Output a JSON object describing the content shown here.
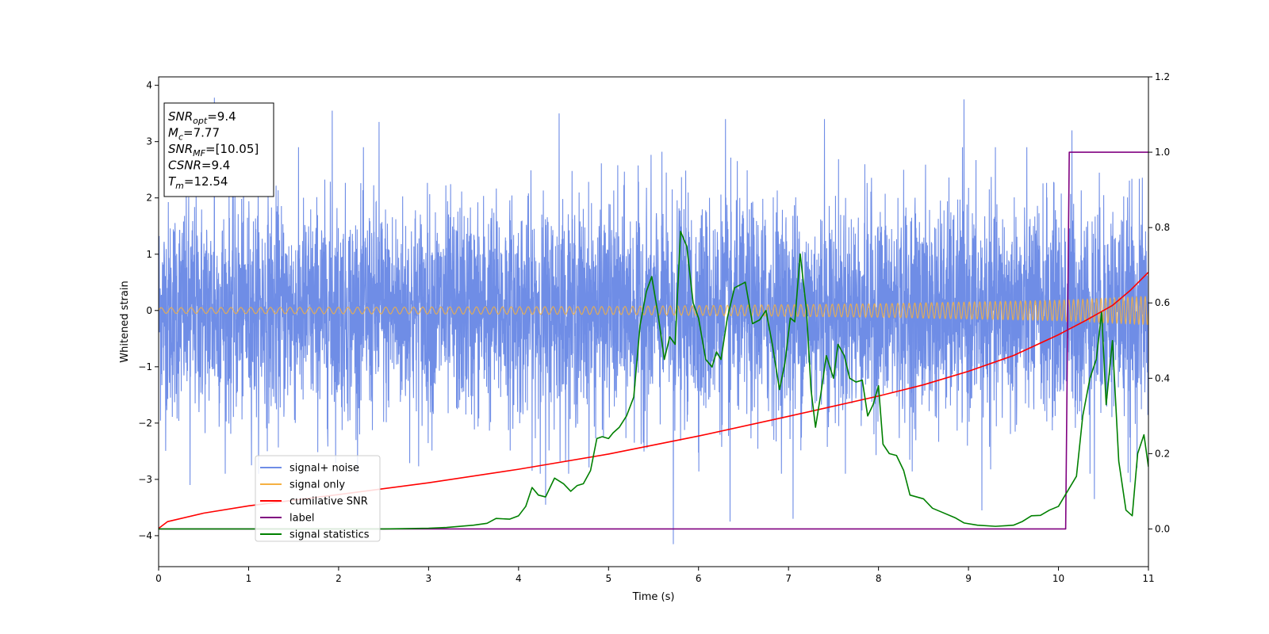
{
  "chart_data": {
    "type": "line",
    "title": "",
    "xlabel": "Time (s)",
    "ylabel": "Whitened strain",
    "xlim": [
      0,
      11
    ],
    "ylim_left": [
      -4.55,
      4.15
    ],
    "ylim_right": [
      -0.1,
      1.2
    ],
    "x_ticks": [
      0,
      1,
      2,
      3,
      4,
      5,
      6,
      7,
      8,
      9,
      10,
      11
    ],
    "y_ticks_left": [
      -4,
      -3,
      -2,
      -1,
      0,
      1,
      2,
      3,
      4
    ],
    "y_ticks_right": [
      0.0,
      0.2,
      0.4,
      0.6,
      0.8,
      1.0,
      1.2
    ],
    "grid": false,
    "legend_position": "lower-left",
    "info_box": {
      "lines": [
        {
          "main": "SNR",
          "sub": "opt",
          "value": "=9.4"
        },
        {
          "main": "M",
          "sub": "c",
          "value": "=7.77"
        },
        {
          "main": "SNR",
          "sub": "MF",
          "value": "=[10.05]"
        },
        {
          "main": "CSNR",
          "sub": "",
          "value": "=9.4"
        },
        {
          "main": "T",
          "sub": "m",
          "value": "=12.54"
        }
      ]
    },
    "series": [
      {
        "name": "signal+ noise",
        "axis": "left",
        "color": "#6f8de6",
        "note_amplitude": "dense noise, roughly ±2 with spikes up to ~3.8 and down to ~-4.1",
        "spikes": [
          [
            0.62,
            3.78
          ],
          [
            1.93,
            3.55
          ],
          [
            2.45,
            3.35
          ],
          [
            4.45,
            3.5
          ],
          [
            6.3,
            3.4
          ],
          [
            7.4,
            3.4
          ],
          [
            8.95,
            3.75
          ],
          [
            10.15,
            3.2
          ],
          [
            5.72,
            -4.15
          ],
          [
            6.35,
            -3.75
          ],
          [
            7.05,
            -3.7
          ],
          [
            0.35,
            -3.1
          ],
          [
            4.3,
            -3.45
          ],
          [
            9.15,
            -3.55
          ],
          [
            10.4,
            -3.35
          ],
          [
            10.8,
            -3.05
          ]
        ]
      },
      {
        "name": "signal only",
        "axis": "left",
        "color": "#f5b041",
        "note": "chirp oscillation with amplitude growing from ~0.05 to ~0.25",
        "amplitude_points": [
          [
            0,
            0.05
          ],
          [
            5,
            0.07
          ],
          [
            8,
            0.12
          ],
          [
            10,
            0.18
          ],
          [
            11,
            0.25
          ]
        ]
      },
      {
        "name": "cumilative SNR",
        "axis": "left",
        "color": "#ff0000",
        "points": [
          [
            0,
            -3.87
          ],
          [
            0.1,
            -3.75
          ],
          [
            0.5,
            -3.6
          ],
          [
            1,
            -3.47
          ],
          [
            2,
            -3.27
          ],
          [
            3,
            -3.06
          ],
          [
            4,
            -2.82
          ],
          [
            5,
            -2.55
          ],
          [
            6,
            -2.23
          ],
          [
            7,
            -1.88
          ],
          [
            7.5,
            -1.7
          ],
          [
            8,
            -1.52
          ],
          [
            8.5,
            -1.32
          ],
          [
            9,
            -1.08
          ],
          [
            9.5,
            -0.8
          ],
          [
            10,
            -0.43
          ],
          [
            10.3,
            -0.18
          ],
          [
            10.6,
            0.09
          ],
          [
            10.8,
            0.36
          ],
          [
            11,
            0.68
          ]
        ]
      },
      {
        "name": "label",
        "axis": "right",
        "color": "#800080",
        "points": [
          [
            0,
            0.0
          ],
          [
            10.08,
            0.0
          ],
          [
            10.12,
            1.0
          ],
          [
            11,
            1.0
          ]
        ]
      },
      {
        "name": "signal statistics",
        "axis": "right",
        "color": "#008000",
        "points": [
          [
            0,
            0.0
          ],
          [
            1,
            0.0
          ],
          [
            2,
            0.0
          ],
          [
            2.5,
            0.0
          ],
          [
            3,
            0.002
          ],
          [
            3.2,
            0.004
          ],
          [
            3.5,
            0.01
          ],
          [
            3.65,
            0.015
          ],
          [
            3.75,
            0.028
          ],
          [
            3.9,
            0.026
          ],
          [
            4.0,
            0.035
          ],
          [
            4.08,
            0.06
          ],
          [
            4.15,
            0.11
          ],
          [
            4.22,
            0.09
          ],
          [
            4.3,
            0.085
          ],
          [
            4.4,
            0.135
          ],
          [
            4.5,
            0.12
          ],
          [
            4.58,
            0.1
          ],
          [
            4.65,
            0.115
          ],
          [
            4.72,
            0.12
          ],
          [
            4.8,
            0.155
          ],
          [
            4.87,
            0.24
          ],
          [
            4.93,
            0.245
          ],
          [
            5.0,
            0.24
          ],
          [
            5.05,
            0.255
          ],
          [
            5.12,
            0.27
          ],
          [
            5.2,
            0.3
          ],
          [
            5.28,
            0.35
          ],
          [
            5.35,
            0.54
          ],
          [
            5.42,
            0.63
          ],
          [
            5.48,
            0.67
          ],
          [
            5.55,
            0.57
          ],
          [
            5.62,
            0.45
          ],
          [
            5.68,
            0.51
          ],
          [
            5.74,
            0.49
          ],
          [
            5.8,
            0.79
          ],
          [
            5.87,
            0.75
          ],
          [
            5.94,
            0.6
          ],
          [
            6.0,
            0.56
          ],
          [
            6.08,
            0.45
          ],
          [
            6.15,
            0.43
          ],
          [
            6.2,
            0.47
          ],
          [
            6.25,
            0.45
          ],
          [
            6.32,
            0.56
          ],
          [
            6.4,
            0.64
          ],
          [
            6.52,
            0.655
          ],
          [
            6.6,
            0.545
          ],
          [
            6.68,
            0.555
          ],
          [
            6.75,
            0.58
          ],
          [
            6.82,
            0.49
          ],
          [
            6.9,
            0.37
          ],
          [
            6.96,
            0.44
          ],
          [
            7.02,
            0.56
          ],
          [
            7.07,
            0.55
          ],
          [
            7.13,
            0.73
          ],
          [
            7.2,
            0.58
          ],
          [
            7.25,
            0.37
          ],
          [
            7.3,
            0.27
          ],
          [
            7.36,
            0.36
          ],
          [
            7.42,
            0.46
          ],
          [
            7.5,
            0.4
          ],
          [
            7.55,
            0.49
          ],
          [
            7.62,
            0.46
          ],
          [
            7.68,
            0.4
          ],
          [
            7.75,
            0.39
          ],
          [
            7.82,
            0.395
          ],
          [
            7.88,
            0.3
          ],
          [
            7.94,
            0.33
          ],
          [
            8.0,
            0.38
          ],
          [
            8.05,
            0.225
          ],
          [
            8.12,
            0.2
          ],
          [
            8.2,
            0.195
          ],
          [
            8.28,
            0.155
          ],
          [
            8.35,
            0.09
          ],
          [
            8.5,
            0.08
          ],
          [
            8.6,
            0.055
          ],
          [
            8.7,
            0.045
          ],
          [
            8.85,
            0.03
          ],
          [
            8.95,
            0.016
          ],
          [
            9.1,
            0.01
          ],
          [
            9.3,
            0.007
          ],
          [
            9.5,
            0.01
          ],
          [
            9.6,
            0.02
          ],
          [
            9.7,
            0.035
          ],
          [
            9.8,
            0.036
          ],
          [
            9.9,
            0.05
          ],
          [
            10.0,
            0.06
          ],
          [
            10.1,
            0.1
          ],
          [
            10.2,
            0.14
          ],
          [
            10.27,
            0.3
          ],
          [
            10.35,
            0.4
          ],
          [
            10.42,
            0.45
          ],
          [
            10.48,
            0.575
          ],
          [
            10.53,
            0.33
          ],
          [
            10.6,
            0.5
          ],
          [
            10.67,
            0.18
          ],
          [
            10.75,
            0.05
          ],
          [
            10.82,
            0.035
          ],
          [
            10.88,
            0.2
          ],
          [
            10.95,
            0.25
          ],
          [
            11.0,
            0.165
          ]
        ]
      }
    ]
  }
}
